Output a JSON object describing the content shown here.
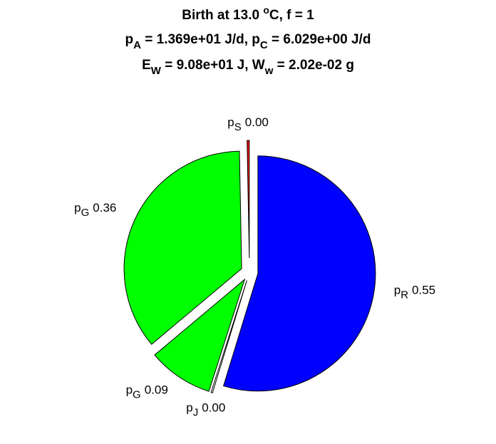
{
  "chart_data": {
    "type": "pie",
    "title": [
      [
        "Birth at 13.0 ",
        {
          "sup": "o"
        },
        "C, f = 1"
      ],
      [
        "p",
        {
          "sub": "A"
        },
        " = 1.369e+01 J/d, p",
        {
          "sub": "C"
        },
        " = 6.029e+00 J/d"
      ],
      [
        "E",
        {
          "sub": "W"
        },
        " = 9.08e+01 J, W",
        {
          "sub": "w"
        },
        " = 2.02e-02 g"
      ]
    ],
    "categories": [
      {
        "symbol": "p",
        "sub": "R"
      },
      {
        "symbol": "p",
        "sub": "J"
      },
      {
        "symbol": "p",
        "sub": "G"
      },
      {
        "symbol": "p",
        "sub": "G"
      },
      {
        "symbol": "p",
        "sub": "S"
      }
    ],
    "values": [
      0.55,
      0.002,
      0.09,
      0.36,
      0.003
    ],
    "value_labels": [
      "0.55",
      "0.00",
      "0.09",
      "0.36",
      "0.00"
    ],
    "colors": [
      "#0000ff",
      "#ffffff",
      "#00ff00",
      "#00ff00",
      "#ff0000"
    ]
  }
}
